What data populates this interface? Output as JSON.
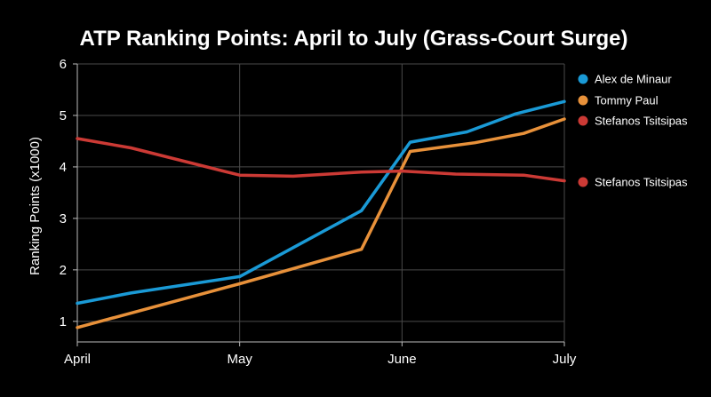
{
  "chart_data": {
    "type": "line",
    "title": "ATP Ranking Points: April to July (Grass-Court Surge)",
    "xlabel": "",
    "ylabel": "Ranking Points (x1000)",
    "x_ticks": [
      "April",
      "May",
      "June",
      "July"
    ],
    "x_tick_values": [
      0,
      1,
      2,
      3
    ],
    "ylim": [
      0.6,
      6
    ],
    "y_ticks": [
      1,
      2,
      3,
      4,
      5,
      6
    ],
    "grid": true,
    "legend_position": "right",
    "series": [
      {
        "name": "Alex de Minaur",
        "color": "#1a9ad6",
        "x": [
          0,
          0.33,
          1,
          1.75,
          2.05,
          2.4,
          2.7,
          3
        ],
        "values": [
          1.35,
          1.55,
          1.87,
          3.15,
          4.48,
          4.68,
          5.03,
          5.27
        ]
      },
      {
        "name": "Tommy Paul",
        "color": "#e8913a",
        "x": [
          0,
          1,
          1.75,
          2.05,
          2.45,
          2.75,
          3
        ],
        "values": [
          0.88,
          1.73,
          2.4,
          4.3,
          4.47,
          4.65,
          4.93
        ]
      },
      {
        "name": "Stefanos Tsitsipas",
        "color": "#cc3a35",
        "x": [
          0,
          0.33,
          1,
          1.33,
          1.75,
          2,
          2.33,
          2.75,
          3
        ],
        "values": [
          4.55,
          4.37,
          3.84,
          3.82,
          3.9,
          3.92,
          3.86,
          3.84,
          3.73
        ]
      }
    ],
    "legend_entries": [
      {
        "label": "Alex de Minaur",
        "color": "#1a9ad6"
      },
      {
        "label": "Tommy Paul",
        "color": "#e8913a"
      },
      {
        "label": "Stefanos Tsitsipas",
        "color": "#cc3a35"
      },
      {
        "label": "Stefanos Tsitsipas",
        "color": "#cc3a35"
      }
    ]
  }
}
